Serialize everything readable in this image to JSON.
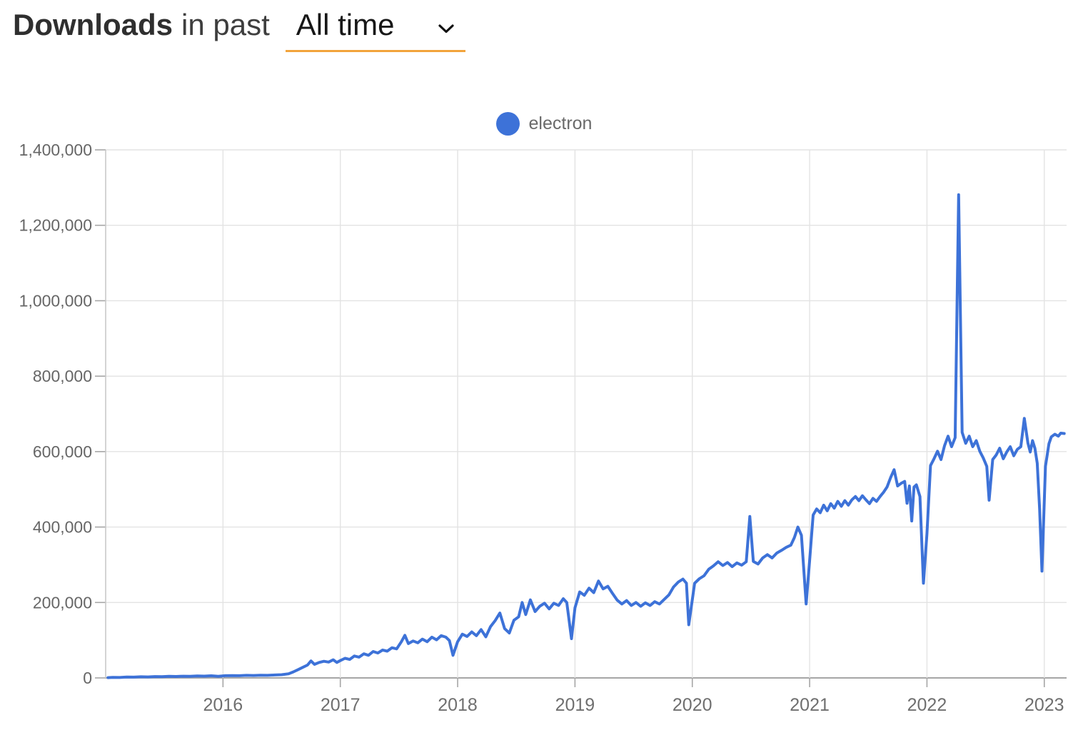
{
  "header": {
    "title_bold": "Downloads",
    "title_rest": "in past",
    "period_select": {
      "selected_option": "All time",
      "underline_color": "#f2a43c"
    }
  },
  "legend": {
    "label": "electron",
    "color": "#3d72d8"
  },
  "colors": {
    "line": "#3d72d8",
    "gridline": "#e3e3e3",
    "axis": "#a6a6a6",
    "y_tick_label": "#666666",
    "x_tick_label": "#6f6f6f"
  },
  "chart_data": {
    "type": "line",
    "title": "Downloads in past All time",
    "xlabel": "",
    "ylabel": "",
    "grid": true,
    "legend_position": "top-center",
    "x_range": [
      2015.0,
      2023.19
    ],
    "y_range": [
      0,
      1400000
    ],
    "x_ticks": [
      {
        "value": 2016,
        "label": "2016"
      },
      {
        "value": 2017,
        "label": "2017"
      },
      {
        "value": 2018,
        "label": "2018"
      },
      {
        "value": 2019,
        "label": "2019"
      },
      {
        "value": 2020,
        "label": "2020"
      },
      {
        "value": 2021,
        "label": "2021"
      },
      {
        "value": 2022,
        "label": "2022"
      },
      {
        "value": 2023,
        "label": "2023"
      }
    ],
    "y_ticks": [
      {
        "value": 0,
        "label": "0"
      },
      {
        "value": 200000,
        "label": "200,000"
      },
      {
        "value": 400000,
        "label": "400,000"
      },
      {
        "value": 600000,
        "label": "600,000"
      },
      {
        "value": 800000,
        "label": "800,000"
      },
      {
        "value": 1000000,
        "label": "1,000,000"
      },
      {
        "value": 1200000,
        "label": "1,200,000"
      },
      {
        "value": 1400000,
        "label": "1,400,000"
      }
    ],
    "series": [
      {
        "name": "electron",
        "color": "#3d72d8",
        "points": [
          [
            2015.02,
            800
          ],
          [
            2015.06,
            1600
          ],
          [
            2015.12,
            1200
          ],
          [
            2015.18,
            2400
          ],
          [
            2015.24,
            2000
          ],
          [
            2015.3,
            3000
          ],
          [
            2015.36,
            2600
          ],
          [
            2015.42,
            3600
          ],
          [
            2015.48,
            3200
          ],
          [
            2015.54,
            4200
          ],
          [
            2015.6,
            3800
          ],
          [
            2015.66,
            4600
          ],
          [
            2015.72,
            4200
          ],
          [
            2015.78,
            5200
          ],
          [
            2015.84,
            4800
          ],
          [
            2015.9,
            5600
          ],
          [
            2015.96,
            4200
          ],
          [
            2016.02,
            5800
          ],
          [
            2016.08,
            6200
          ],
          [
            2016.14,
            5800
          ],
          [
            2016.2,
            6800
          ],
          [
            2016.26,
            6400
          ],
          [
            2016.32,
            7200
          ],
          [
            2016.38,
            6800
          ],
          [
            2016.44,
            7800
          ],
          [
            2016.5,
            8600
          ],
          [
            2016.56,
            11000
          ],
          [
            2016.6,
            16000
          ],
          [
            2016.64,
            22000
          ],
          [
            2016.68,
            28000
          ],
          [
            2016.72,
            34000
          ],
          [
            2016.75,
            45000
          ],
          [
            2016.78,
            36000
          ],
          [
            2016.82,
            41000
          ],
          [
            2016.86,
            44000
          ],
          [
            2016.9,
            42000
          ],
          [
            2016.94,
            48000
          ],
          [
            2016.97,
            41000
          ],
          [
            2017.0,
            46000
          ],
          [
            2017.04,
            52000
          ],
          [
            2017.08,
            49000
          ],
          [
            2017.12,
            58000
          ],
          [
            2017.16,
            55000
          ],
          [
            2017.2,
            64000
          ],
          [
            2017.24,
            60000
          ],
          [
            2017.28,
            70000
          ],
          [
            2017.32,
            66000
          ],
          [
            2017.36,
            74000
          ],
          [
            2017.4,
            71000
          ],
          [
            2017.44,
            80000
          ],
          [
            2017.48,
            77000
          ],
          [
            2017.52,
            96000
          ],
          [
            2017.55,
            113000
          ],
          [
            2017.58,
            91000
          ],
          [
            2017.62,
            98000
          ],
          [
            2017.66,
            93000
          ],
          [
            2017.7,
            103000
          ],
          [
            2017.74,
            96000
          ],
          [
            2017.78,
            108000
          ],
          [
            2017.82,
            101000
          ],
          [
            2017.86,
            112000
          ],
          [
            2017.9,
            108000
          ],
          [
            2017.93,
            99000
          ],
          [
            2017.96,
            60000
          ],
          [
            2018.0,
            96000
          ],
          [
            2018.04,
            116000
          ],
          [
            2018.08,
            110000
          ],
          [
            2018.12,
            122000
          ],
          [
            2018.16,
            112000
          ],
          [
            2018.2,
            128000
          ],
          [
            2018.24,
            109000
          ],
          [
            2018.28,
            136000
          ],
          [
            2018.32,
            152000
          ],
          [
            2018.36,
            172000
          ],
          [
            2018.4,
            131000
          ],
          [
            2018.44,
            119000
          ],
          [
            2018.48,
            153000
          ],
          [
            2018.52,
            162000
          ],
          [
            2018.55,
            200000
          ],
          [
            2018.58,
            168000
          ],
          [
            2018.62,
            207000
          ],
          [
            2018.66,
            176000
          ],
          [
            2018.7,
            190000
          ],
          [
            2018.74,
            198000
          ],
          [
            2018.78,
            183000
          ],
          [
            2018.82,
            198000
          ],
          [
            2018.86,
            192000
          ],
          [
            2018.9,
            210000
          ],
          [
            2018.93,
            200000
          ],
          [
            2018.97,
            104000
          ],
          [
            2019.0,
            186000
          ],
          [
            2019.04,
            228000
          ],
          [
            2019.08,
            219000
          ],
          [
            2019.12,
            238000
          ],
          [
            2019.16,
            226000
          ],
          [
            2019.2,
            257000
          ],
          [
            2019.24,
            236000
          ],
          [
            2019.28,
            243000
          ],
          [
            2019.32,
            224000
          ],
          [
            2019.36,
            206000
          ],
          [
            2019.4,
            196000
          ],
          [
            2019.44,
            205000
          ],
          [
            2019.48,
            192000
          ],
          [
            2019.52,
            200000
          ],
          [
            2019.56,
            190000
          ],
          [
            2019.6,
            199000
          ],
          [
            2019.64,
            192000
          ],
          [
            2019.68,
            202000
          ],
          [
            2019.72,
            196000
          ],
          [
            2019.76,
            208000
          ],
          [
            2019.8,
            220000
          ],
          [
            2019.84,
            241000
          ],
          [
            2019.88,
            254000
          ],
          [
            2019.92,
            262000
          ],
          [
            2019.95,
            251000
          ],
          [
            2019.97,
            141000
          ],
          [
            2020.02,
            251000
          ],
          [
            2020.06,
            263000
          ],
          [
            2020.1,
            271000
          ],
          [
            2020.14,
            288000
          ],
          [
            2020.18,
            297000
          ],
          [
            2020.22,
            308000
          ],
          [
            2020.26,
            298000
          ],
          [
            2020.3,
            306000
          ],
          [
            2020.34,
            295000
          ],
          [
            2020.38,
            305000
          ],
          [
            2020.42,
            299000
          ],
          [
            2020.46,
            308000
          ],
          [
            2020.49,
            428000
          ],
          [
            2020.52,
            309000
          ],
          [
            2020.56,
            302000
          ],
          [
            2020.6,
            318000
          ],
          [
            2020.64,
            327000
          ],
          [
            2020.68,
            318000
          ],
          [
            2020.72,
            331000
          ],
          [
            2020.76,
            338000
          ],
          [
            2020.8,
            346000
          ],
          [
            2020.84,
            352000
          ],
          [
            2020.87,
            372000
          ],
          [
            2020.9,
            400000
          ],
          [
            2020.93,
            378000
          ],
          [
            2020.97,
            196000
          ],
          [
            2021.0,
            312000
          ],
          [
            2021.03,
            432000
          ],
          [
            2021.06,
            448000
          ],
          [
            2021.09,
            438000
          ],
          [
            2021.12,
            458000
          ],
          [
            2021.15,
            443000
          ],
          [
            2021.18,
            462000
          ],
          [
            2021.21,
            450000
          ],
          [
            2021.24,
            468000
          ],
          [
            2021.27,
            455000
          ],
          [
            2021.3,
            470000
          ],
          [
            2021.33,
            458000
          ],
          [
            2021.36,
            472000
          ],
          [
            2021.39,
            481000
          ],
          [
            2021.42,
            470000
          ],
          [
            2021.45,
            483000
          ],
          [
            2021.48,
            472000
          ],
          [
            2021.51,
            462000
          ],
          [
            2021.54,
            476000
          ],
          [
            2021.57,
            468000
          ],
          [
            2021.6,
            481000
          ],
          [
            2021.63,
            492000
          ],
          [
            2021.66,
            506000
          ],
          [
            2021.69,
            531000
          ],
          [
            2021.72,
            552000
          ],
          [
            2021.75,
            509000
          ],
          [
            2021.78,
            516000
          ],
          [
            2021.81,
            521000
          ],
          [
            2021.83,
            463000
          ],
          [
            2021.85,
            509000
          ],
          [
            2021.87,
            416000
          ],
          [
            2021.89,
            506000
          ],
          [
            2021.91,
            512000
          ],
          [
            2021.94,
            481000
          ],
          [
            2021.97,
            251000
          ],
          [
            2022.0,
            382000
          ],
          [
            2022.03,
            563000
          ],
          [
            2022.06,
            581000
          ],
          [
            2022.09,
            601000
          ],
          [
            2022.12,
            579000
          ],
          [
            2022.15,
            616000
          ],
          [
            2022.18,
            641000
          ],
          [
            2022.21,
            613000
          ],
          [
            2022.24,
            637000
          ],
          [
            2022.27,
            1281000
          ],
          [
            2022.3,
            651000
          ],
          [
            2022.33,
            622000
          ],
          [
            2022.36,
            641000
          ],
          [
            2022.39,
            613000
          ],
          [
            2022.42,
            629000
          ],
          [
            2022.45,
            601000
          ],
          [
            2022.48,
            583000
          ],
          [
            2022.51,
            561000
          ],
          [
            2022.53,
            471000
          ],
          [
            2022.56,
            579000
          ],
          [
            2022.59,
            591000
          ],
          [
            2022.62,
            609000
          ],
          [
            2022.65,
            581000
          ],
          [
            2022.68,
            599000
          ],
          [
            2022.71,
            613000
          ],
          [
            2022.74,
            589000
          ],
          [
            2022.77,
            606000
          ],
          [
            2022.8,
            613000
          ],
          [
            2022.83,
            688000
          ],
          [
            2022.86,
            623000
          ],
          [
            2022.88,
            599000
          ],
          [
            2022.9,
            629000
          ],
          [
            2022.92,
            609000
          ],
          [
            2022.94,
            569000
          ],
          [
            2022.96,
            449000
          ],
          [
            2022.98,
            283000
          ],
          [
            2023.01,
            561000
          ],
          [
            2023.04,
            621000
          ],
          [
            2023.06,
            639000
          ],
          [
            2023.09,
            646000
          ],
          [
            2023.12,
            641000
          ],
          [
            2023.14,
            649000
          ],
          [
            2023.17,
            648000
          ]
        ]
      }
    ]
  }
}
